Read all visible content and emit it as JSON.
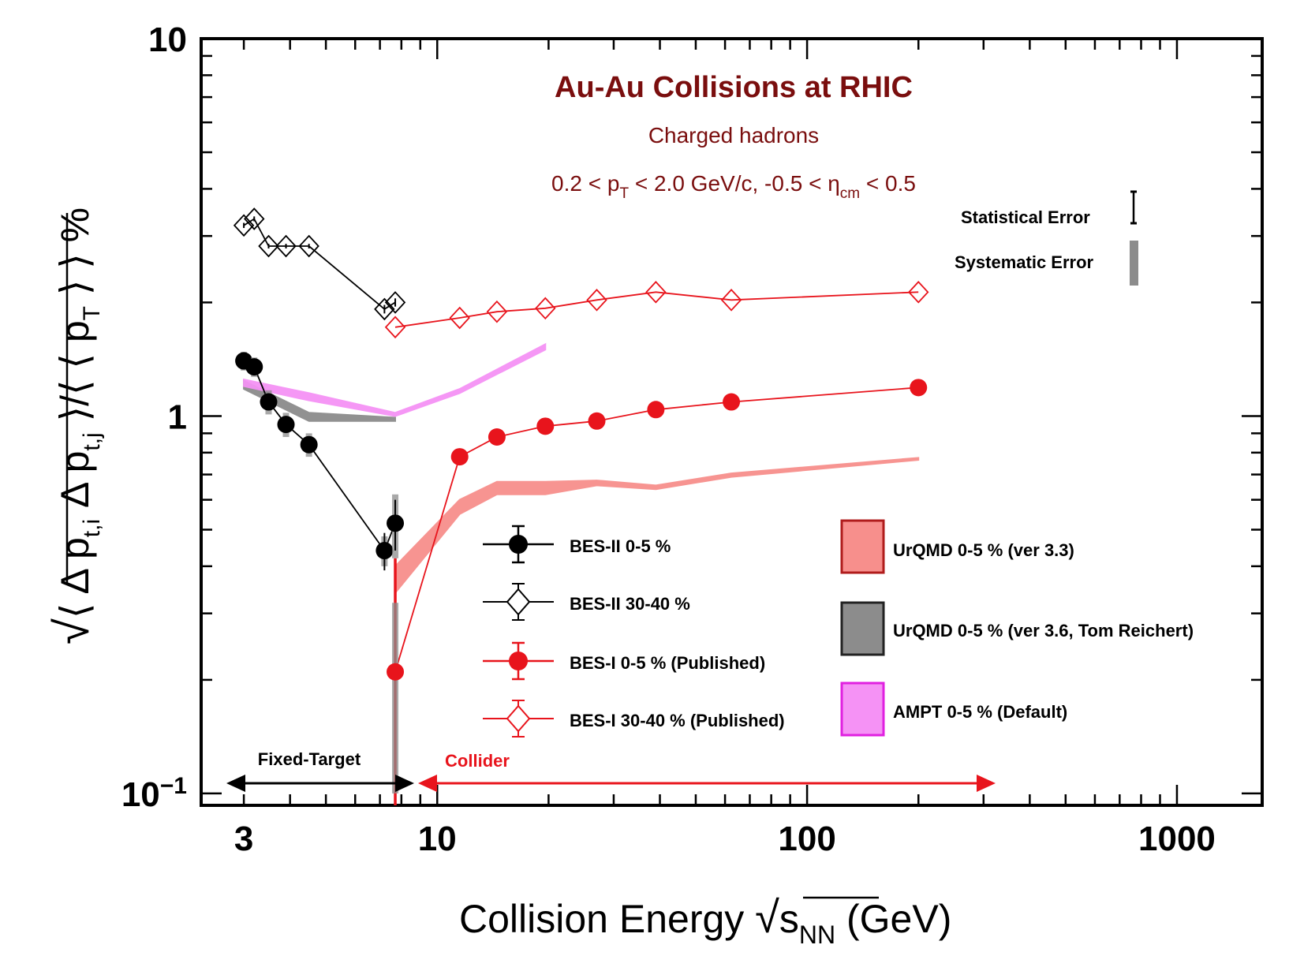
{
  "chart_data": {
    "type": "scatter",
    "title": "Au-Au Collisions at RHIC",
    "subtitle": "Charged hadrons",
    "cuts": {
      "p1": "0.2 < p",
      "p1_sub": "T",
      "p2": " < 2.0 GeV/c, -0.5 < η",
      "p2_sub": "cm",
      "p3": " < 0.5"
    },
    "xlabel": {
      "main": "Collision Energy ",
      "sqrt": "√",
      "s": "s",
      "s_sub": "NN",
      "unit": " (GeV)"
    },
    "ylabel": {
      "sqrt": "√",
      "p1": "⟨ Δ p",
      "p1_sub": "t,i",
      "p2": " Δ p",
      "p2_sub": "t,j",
      "p3": " ⟩/⟨ ⟨ p",
      "p3_sub": "T",
      "p4": " ⟩ ⟩ %"
    },
    "x_scale": "log",
    "y_scale": "log",
    "xlim": [
      2.3,
      1700
    ],
    "ylim": [
      0.093,
      10
    ],
    "x_ticks": [
      {
        "value": 3,
        "label": "3"
      },
      {
        "value": 10,
        "label": "10"
      },
      {
        "value": 100,
        "label": "100"
      },
      {
        "value": 1000,
        "label": "1000"
      }
    ],
    "y_ticks": [
      {
        "value": 10,
        "label": "10"
      },
      {
        "value": 1,
        "label": "1"
      },
      {
        "value": 0.1,
        "label": "10",
        "sup": "−1"
      }
    ],
    "series": [
      {
        "name": "BES-II 0-5 %",
        "marker": "filled-circle",
        "color": "#000000",
        "x": [
          3.0,
          3.2,
          3.5,
          3.9,
          4.5,
          7.2,
          7.7
        ],
        "y": [
          1.4,
          1.35,
          1.09,
          0.95,
          0.84,
          0.44,
          0.52
        ],
        "stat_err": [
          0.05,
          0.05,
          0.04,
          0.03,
          0.03,
          0.05,
          0.08
        ],
        "sys_err": [
          0.08,
          0.08,
          0.08,
          0.07,
          0.06,
          0.04,
          0.1
        ]
      },
      {
        "name": "BES-II 30-40 %",
        "marker": "open-diamond",
        "color": "#000000",
        "x": [
          3.0,
          3.2,
          3.5,
          3.9,
          4.5,
          7.2,
          7.7
        ],
        "y": [
          3.2,
          3.33,
          2.82,
          2.82,
          2.82,
          1.92,
          2.0
        ],
        "stat_err": [
          0.05,
          0.05,
          0.04,
          0.04,
          0.04,
          0.05,
          0.05
        ]
      },
      {
        "name": "BES-I 0-5 % (Published)",
        "marker": "filled-circle",
        "color": "#e8141c",
        "x": [
          7.7,
          11.5,
          14.5,
          19.6,
          27,
          39,
          62.4,
          200
        ],
        "y": [
          0.21,
          0.78,
          0.88,
          0.94,
          0.97,
          1.04,
          1.09,
          1.19
        ],
        "stat_err": [
          0.01,
          0.01,
          0.01,
          0.01,
          0.01,
          0.01,
          0.01,
          0.01
        ],
        "sys_err": [
          0.11,
          0.02,
          0.03,
          0.02,
          0.02,
          0.02,
          0.02,
          0.02
        ]
      },
      {
        "name": "BES-I 30-40 % (Published)",
        "marker": "open-diamond",
        "color": "#e8141c",
        "x": [
          7.7,
          11.5,
          14.5,
          19.6,
          27,
          39,
          62.4,
          200
        ],
        "y": [
          1.72,
          1.82,
          1.89,
          1.93,
          2.03,
          2.13,
          2.03,
          2.13
        ]
      }
    ],
    "bands": [
      {
        "name": "UrQMD 0-5 % (ver 3.3)",
        "fill": "#f78f8c",
        "stroke": "#b01c1c",
        "x": [
          7.7,
          11.5,
          14.5,
          19.6,
          27,
          39,
          62.4,
          200
        ],
        "y_low": [
          0.34,
          0.55,
          0.62,
          0.62,
          0.655,
          0.64,
          0.69,
          0.765
        ],
        "y_high": [
          0.4,
          0.6,
          0.67,
          0.67,
          0.675,
          0.655,
          0.705,
          0.775
        ]
      },
      {
        "name": "UrQMD 0-5 % (ver 3.6, Tom Reichert)",
        "fill": "#8c8c8c",
        "stroke": "#333333",
        "x": [
          3.0,
          4.5,
          7.7
        ],
        "y_low": [
          1.18,
          0.97,
          0.97
        ],
        "y_high": [
          1.24,
          1.02,
          0.99
        ]
      },
      {
        "name": "AMPT 0-5 % (Default)",
        "fill": "#f592f5",
        "stroke": "#e020e0",
        "x": [
          3.0,
          4.5,
          7.7,
          11.5,
          19.6
        ],
        "y_low": [
          1.2,
          1.1,
          1.0,
          1.15,
          1.5
        ],
        "y_high": [
          1.25,
          1.15,
          1.02,
          1.18,
          1.55
        ]
      }
    ],
    "error_legend": {
      "stat": "Statistical Error",
      "sys": "Systematic Error"
    },
    "regions": {
      "fixed_target": "Fixed-Target",
      "collider": "Collider"
    },
    "divider_x": 7.7,
    "legend_position": "bottom-center"
  },
  "colors": {
    "title": "#7a0e0e",
    "red": "#e8141c",
    "axis": "#000000"
  }
}
